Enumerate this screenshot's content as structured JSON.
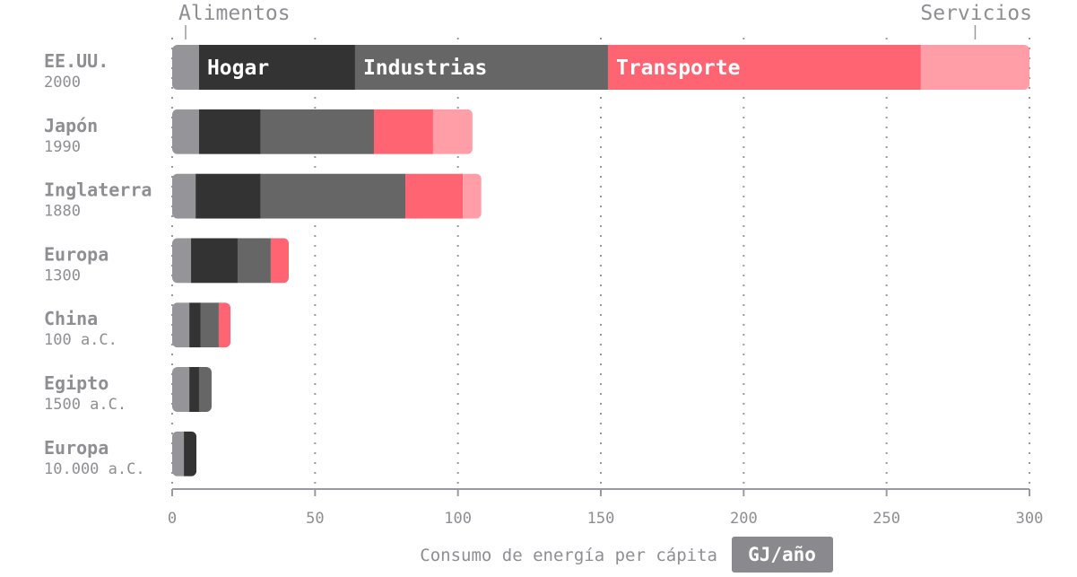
{
  "chart_data": {
    "type": "bar",
    "orientation": "horizontal",
    "stacked": true,
    "xlabel": "Consumo de energía per cápita",
    "xunit": "GJ/año",
    "xlim": [
      0,
      300
    ],
    "xticks": [
      0,
      50,
      100,
      150,
      200,
      250,
      300
    ],
    "grid": true,
    "categories": [
      {
        "name": "EE.UU.",
        "period": "2000"
      },
      {
        "name": "Japón",
        "period": "1990"
      },
      {
        "name": "Inglaterra",
        "period": "1880"
      },
      {
        "name": "Europa",
        "period": "1300"
      },
      {
        "name": "China",
        "period": "100 a.C."
      },
      {
        "name": "Egipto",
        "period": "1500 a.C."
      },
      {
        "name": "Europa",
        "period": "10.000 a.C."
      }
    ],
    "series": [
      {
        "name": "Alimentos",
        "color": "#949499",
        "label_position": "top",
        "values": [
          9.4,
          9.4,
          8.2,
          6.6,
          6.0,
          6.0,
          4.1
        ]
      },
      {
        "name": "Hogar",
        "color": "#333333",
        "label_position": "inside",
        "values": [
          54.6,
          21.6,
          22.8,
          16.3,
          4.0,
          3.4,
          4.4
        ]
      },
      {
        "name": "Industrias",
        "color": "#666666",
        "label_position": "inside",
        "values": [
          88.5,
          39.6,
          50.6,
          11.6,
          6.3,
          4.4,
          0
        ]
      },
      {
        "name": "Transporte",
        "color": "#ff6473",
        "label_position": "inside",
        "values": [
          109.5,
          20.7,
          20.1,
          6.3,
          4.1,
          0,
          0
        ]
      },
      {
        "name": "Servicios",
        "color": "#ff9ea6",
        "label_position": "top",
        "values": [
          38.0,
          13.8,
          6.5,
          0,
          0,
          0,
          0
        ]
      }
    ]
  }
}
